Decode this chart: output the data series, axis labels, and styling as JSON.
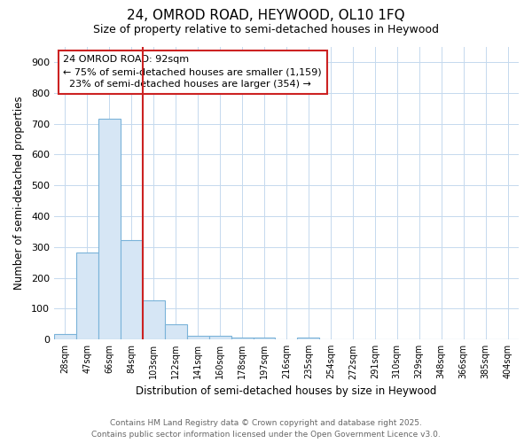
{
  "title": "24, OMROD ROAD, HEYWOOD, OL10 1FQ",
  "subtitle": "Size of property relative to semi-detached houses in Heywood",
  "xlabel": "Distribution of semi-detached houses by size in Heywood",
  "ylabel": "Number of semi-detached properties",
  "categories": [
    "28sqm",
    "47sqm",
    "66sqm",
    "84sqm",
    "103sqm",
    "122sqm",
    "141sqm",
    "160sqm",
    "178sqm",
    "197sqm",
    "216sqm",
    "235sqm",
    "254sqm",
    "272sqm",
    "291sqm",
    "310sqm",
    "329sqm",
    "348sqm",
    "366sqm",
    "385sqm",
    "404sqm"
  ],
  "values": [
    18,
    281,
    716,
    321,
    128,
    50,
    13,
    11,
    5,
    5,
    0,
    7,
    0,
    0,
    0,
    0,
    0,
    0,
    0,
    0,
    0
  ],
  "bar_color": "#d6e6f5",
  "bar_edge_color": "#7ab3d9",
  "vline_x": 3.5,
  "vline_color": "#cc2222",
  "annotation_text": "24 OMROD ROAD: 92sqm\n← 75% of semi-detached houses are smaller (1,159)\n  23% of semi-detached houses are larger (354) →",
  "annotation_box_color": "#cc2222",
  "ylim": [
    0,
    950
  ],
  "yticks": [
    0,
    100,
    200,
    300,
    400,
    500,
    600,
    700,
    800,
    900
  ],
  "background_color": "#ffffff",
  "grid_color": "#c5d9ee",
  "footer_line1": "Contains HM Land Registry data © Crown copyright and database right 2025.",
  "footer_line2": "Contains public sector information licensed under the Open Government Licence v3.0."
}
